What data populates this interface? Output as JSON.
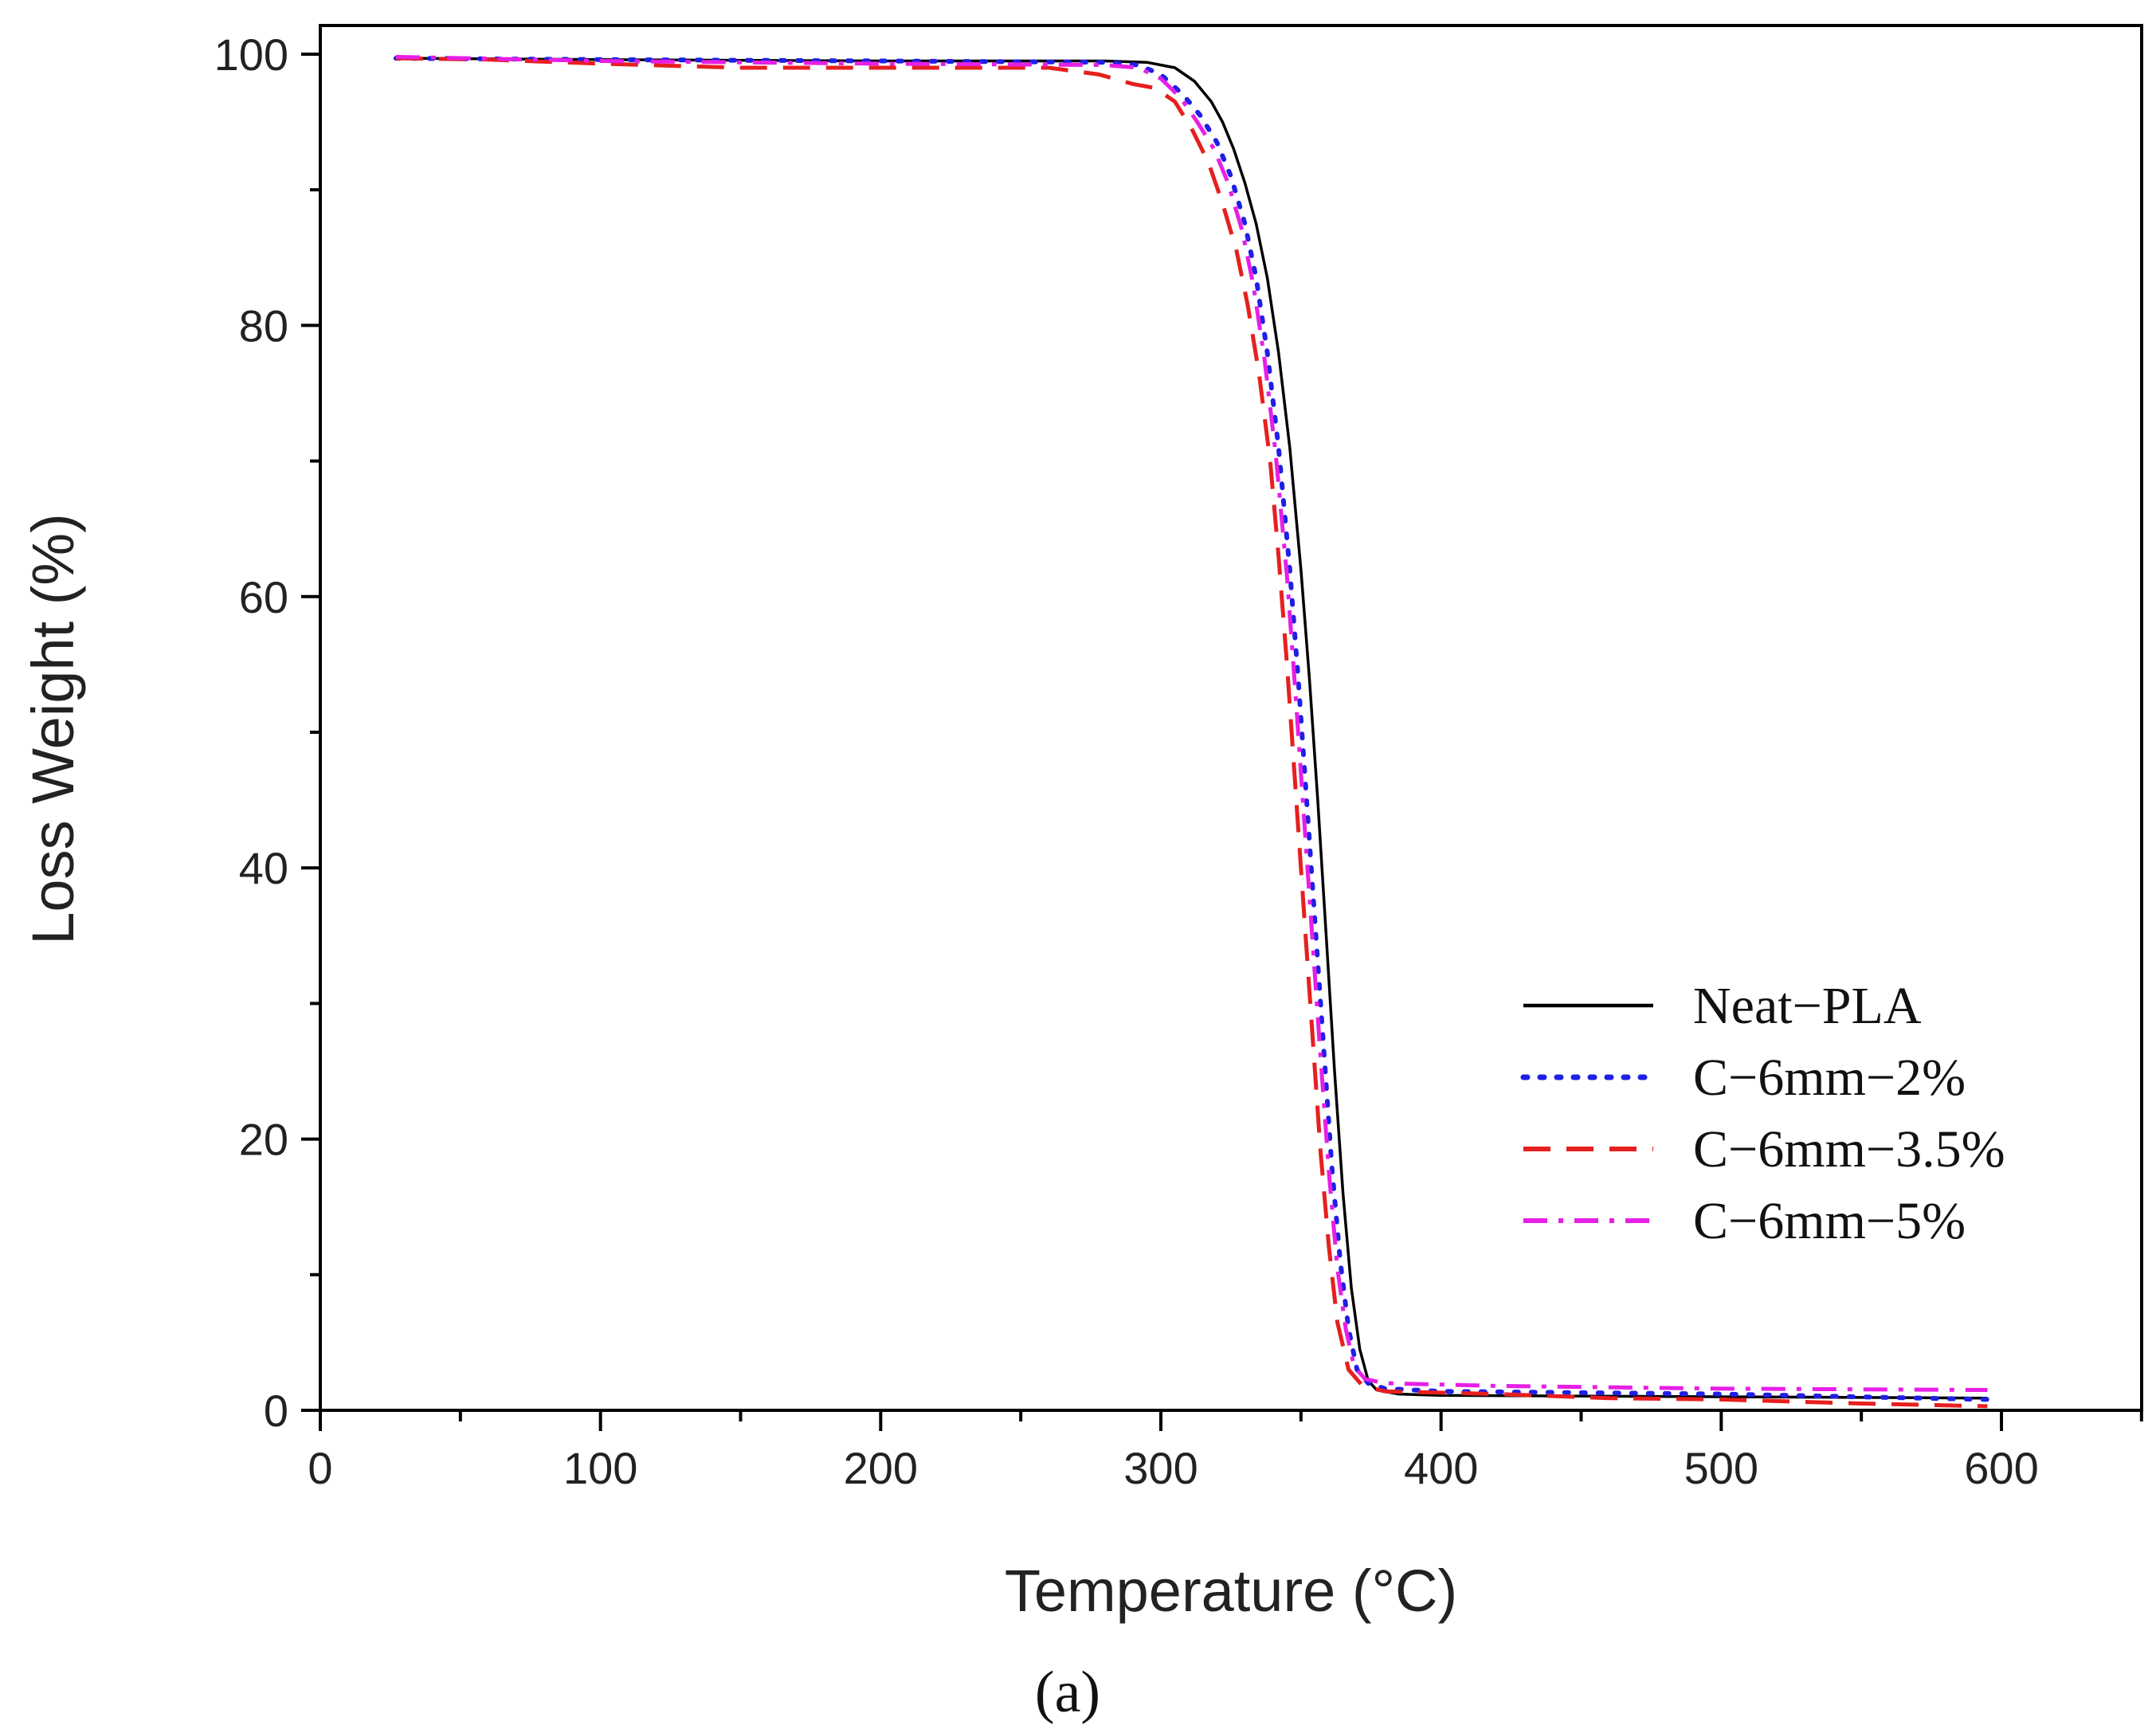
{
  "chart_data": {
    "type": "line",
    "title": "",
    "caption": "(a)",
    "xlabel": "Temperature (°C)",
    "ylabel": "Loss Weight (%)",
    "xlim": [
      0,
      650
    ],
    "ylim": [
      0,
      100
    ],
    "xticks": [
      0,
      100,
      200,
      300,
      400,
      500,
      600
    ],
    "yticks": [
      0,
      20,
      40,
      60,
      80,
      100
    ],
    "grid": false,
    "legend_position": "bottom-right",
    "series": [
      {
        "name": "Neat−PLA",
        "color": "#000000",
        "style": "solid",
        "points": [
          [
            27,
            99.7
          ],
          [
            100,
            99.6
          ],
          [
            200,
            99.5
          ],
          [
            280,
            99.5
          ],
          [
            295,
            99.4
          ],
          [
            305,
            99.0
          ],
          [
            312,
            98.0
          ],
          [
            318,
            96.5
          ],
          [
            322,
            95.0
          ],
          [
            326,
            93.0
          ],
          [
            330,
            90.5
          ],
          [
            334,
            87.5
          ],
          [
            338,
            83.5
          ],
          [
            342,
            78.0
          ],
          [
            346,
            71.0
          ],
          [
            350,
            62.0
          ],
          [
            353,
            54.0
          ],
          [
            356,
            45.0
          ],
          [
            359,
            35.0
          ],
          [
            362,
            25.0
          ],
          [
            365,
            16.0
          ],
          [
            368,
            9.0
          ],
          [
            371,
            4.5
          ],
          [
            374,
            2.2
          ],
          [
            377,
            1.5
          ],
          [
            385,
            1.2
          ],
          [
            400,
            1.1
          ],
          [
            500,
            1.0
          ],
          [
            595,
            0.9
          ]
        ]
      },
      {
        "name": "C−6mm−2%",
        "color": "#1f1fe6",
        "style": "dotted",
        "points": [
          [
            27,
            99.7
          ],
          [
            100,
            99.6
          ],
          [
            200,
            99.5
          ],
          [
            280,
            99.4
          ],
          [
            292,
            99.2
          ],
          [
            300,
            98.5
          ],
          [
            308,
            97.0
          ],
          [
            314,
            95.5
          ],
          [
            320,
            93.5
          ],
          [
            325,
            91.0
          ],
          [
            330,
            87.5
          ],
          [
            334,
            83.5
          ],
          [
            338,
            78.0
          ],
          [
            342,
            71.0
          ],
          [
            346,
            62.0
          ],
          [
            349,
            54.0
          ],
          [
            352,
            45.0
          ],
          [
            355,
            36.0
          ],
          [
            358,
            27.0
          ],
          [
            361,
            18.0
          ],
          [
            364,
            11.0
          ],
          [
            367,
            6.0
          ],
          [
            370,
            3.0
          ],
          [
            374,
            2.0
          ],
          [
            380,
            1.6
          ],
          [
            400,
            1.4
          ],
          [
            500,
            1.2
          ],
          [
            595,
            0.8
          ]
        ]
      },
      {
        "name": "C−6mm−3.5%",
        "color": "#e61f1f",
        "style": "dashed",
        "points": [
          [
            27,
            99.7
          ],
          [
            60,
            99.6
          ],
          [
            100,
            99.3
          ],
          [
            150,
            99.0
          ],
          [
            200,
            99.0
          ],
          [
            260,
            99.0
          ],
          [
            278,
            98.5
          ],
          [
            290,
            97.8
          ],
          [
            298,
            97.5
          ],
          [
            305,
            96.5
          ],
          [
            311,
            94.5
          ],
          [
            317,
            92.0
          ],
          [
            322,
            89.0
          ],
          [
            327,
            85.5
          ],
          [
            331,
            81.5
          ],
          [
            335,
            76.5
          ],
          [
            339,
            70.0
          ],
          [
            342,
            63.0
          ],
          [
            345,
            55.0
          ],
          [
            348,
            46.0
          ],
          [
            351,
            37.0
          ],
          [
            354,
            28.0
          ],
          [
            357,
            19.0
          ],
          [
            360,
            12.0
          ],
          [
            363,
            6.5
          ],
          [
            367,
            3.0
          ],
          [
            372,
            1.8
          ],
          [
            380,
            1.4
          ],
          [
            420,
            1.2
          ],
          [
            460,
            0.9
          ],
          [
            500,
            0.8
          ],
          [
            550,
            0.5
          ],
          [
            595,
            0.3
          ]
        ]
      },
      {
        "name": "C−6mm−5%",
        "color": "#e61fe6",
        "style": "dashdot",
        "points": [
          [
            27,
            99.8
          ],
          [
            100,
            99.5
          ],
          [
            200,
            99.3
          ],
          [
            280,
            99.2
          ],
          [
            292,
            99.0
          ],
          [
            300,
            98.2
          ],
          [
            307,
            96.8
          ],
          [
            313,
            95.0
          ],
          [
            319,
            93.0
          ],
          [
            324,
            90.5
          ],
          [
            329,
            87.0
          ],
          [
            333,
            83.0
          ],
          [
            337,
            77.5
          ],
          [
            341,
            70.5
          ],
          [
            345,
            61.5
          ],
          [
            348,
            53.0
          ],
          [
            351,
            44.0
          ],
          [
            354,
            35.0
          ],
          [
            357,
            26.0
          ],
          [
            360,
            17.5
          ],
          [
            363,
            10.5
          ],
          [
            366,
            6.0
          ],
          [
            369,
            3.2
          ],
          [
            373,
            2.3
          ],
          [
            380,
            2.0
          ],
          [
            420,
            1.8
          ],
          [
            500,
            1.6
          ],
          [
            595,
            1.5
          ]
        ]
      }
    ]
  }
}
